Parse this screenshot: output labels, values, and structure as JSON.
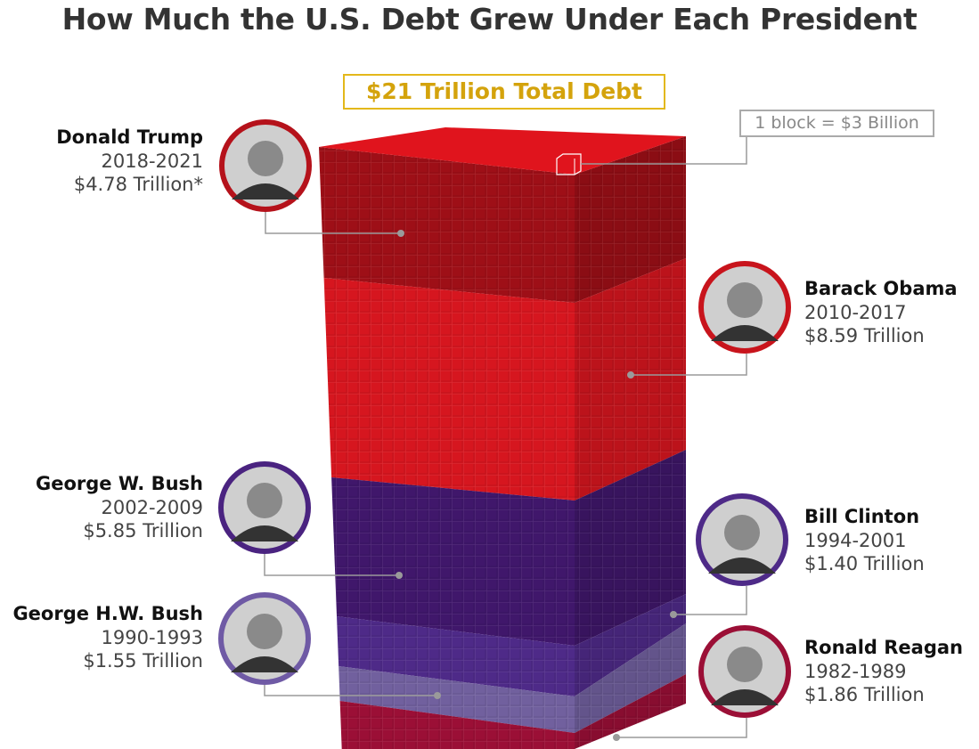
{
  "title": "How Much the U.S. Debt Grew Under Each President",
  "total_label": "$21 Trillion Total Debt",
  "legend_label": "1 block = $3 Billion",
  "chart_data": {
    "type": "bar",
    "subtype": "stacked-3d-block-column",
    "title": "How Much the U.S. Debt Grew Under Each President",
    "total": "$21 Trillion Total Debt",
    "unit_note": "1 block = $3 Billion",
    "categories": [
      "Ronald Reagan",
      "George H.W. Bush",
      "Bill Clinton",
      "George W. Bush",
      "Barack Obama",
      "Donald Trump"
    ],
    "values_trillions": [
      1.86,
      1.55,
      1.4,
      5.85,
      8.59,
      4.78
    ],
    "stack_order": "bottom-to-top"
  },
  "presidents": [
    {
      "name": "Donald Trump",
      "years": "2018-2021",
      "amount": "$4.78 Trillion*",
      "color": "#9e0f17",
      "ring": "#b5121b"
    },
    {
      "name": "Barack Obama",
      "years": "2010-2017",
      "amount": "$8.59 Trillion",
      "color": "#d6161f",
      "ring": "#c8141c"
    },
    {
      "name": "George W. Bush",
      "years": "2002-2009",
      "amount": "$5.85 Trillion",
      "color": "#40176b",
      "ring": "#4a2380"
    },
    {
      "name": "Bill Clinton",
      "years": "1994-2001",
      "amount": "$1.40 Trillion",
      "color": "#4e2a88",
      "ring": "#4e2a88"
    },
    {
      "name": "George H.W. Bush",
      "years": "1990-1993",
      "amount": "$1.55 Trillion",
      "color": "#71609e",
      "ring": "#6f5aa5"
    },
    {
      "name": "Ronald Reagan",
      "years": "1982-1989",
      "amount": "$1.86 Trillion",
      "color": "#9b0f36",
      "ring": "#9b0f36"
    }
  ]
}
